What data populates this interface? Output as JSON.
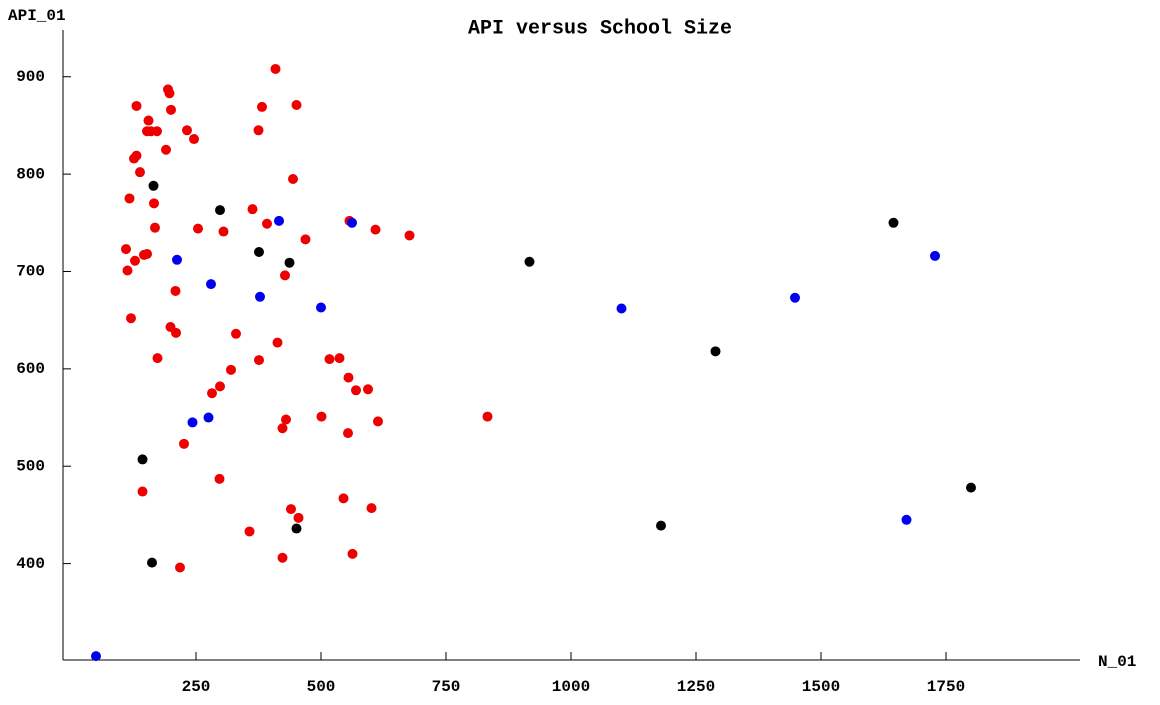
{
  "chart_data": {
    "type": "scatter",
    "title": "API versus School Size",
    "x_label": "N_01",
    "y_label": "API_01",
    "xlim": [
      -16,
      2018
    ],
    "ylim": [
      301,
      948
    ],
    "xticks": [
      250,
      500,
      750,
      1000,
      1250,
      1500,
      1750
    ],
    "yticks": [
      400,
      500,
      600,
      700,
      800,
      900
    ],
    "grid": false,
    "series": [
      {
        "color": "#ee0000",
        "x": [
          131,
          194,
          197,
          155,
          200,
          152,
          160,
          172,
          190,
          232,
          246,
          126,
          131,
          138,
          166,
          117,
          168,
          110,
          113,
          128,
          146,
          152,
          254,
          305,
          209,
          120,
          199,
          210,
          330,
          173,
          320,
          298,
          282,
          297,
          226,
          143,
          218,
          363,
          375,
          382,
          392,
          409,
          451,
          444,
          469,
          428,
          413,
          376,
          430,
          423,
          440,
          455,
          357,
          423,
          501,
          517,
          537,
          555,
          570,
          594,
          614,
          554,
          545,
          601,
          563,
          557,
          609,
          677,
          833
        ],
        "values": [
          870,
          887,
          883,
          855,
          866,
          844,
          844,
          844,
          825,
          845,
          836,
          816,
          819,
          802,
          770,
          775,
          745,
          723,
          701,
          711,
          717,
          718,
          744,
          741,
          680,
          652,
          643,
          637,
          636,
          611,
          599,
          582,
          575,
          487,
          523,
          474,
          396,
          764,
          845,
          869,
          749,
          908,
          871,
          795,
          733,
          696,
          627,
          609,
          548,
          539,
          456,
          447,
          433,
          406,
          551,
          610,
          611,
          591,
          578,
          579,
          546,
          534,
          467,
          457,
          410,
          752,
          743,
          737,
          551
        ]
      },
      {
        "color": "#000000",
        "x": [
          165,
          298,
          376,
          437,
          143,
          162,
          451,
          917,
          1180,
          1289,
          1645,
          1800
        ],
        "values": [
          788,
          763,
          720,
          709,
          507,
          401,
          436,
          710,
          439,
          618,
          750,
          478
        ]
      },
      {
        "color": "#0000ee",
        "x": [
          50,
          212,
          280,
          243,
          275,
          378,
          416,
          500,
          562,
          1101,
          1448,
          1728,
          1671
        ],
        "values": [
          305,
          712,
          687,
          545,
          550,
          674,
          752,
          663,
          750,
          662,
          673,
          716,
          445
        ]
      }
    ]
  }
}
